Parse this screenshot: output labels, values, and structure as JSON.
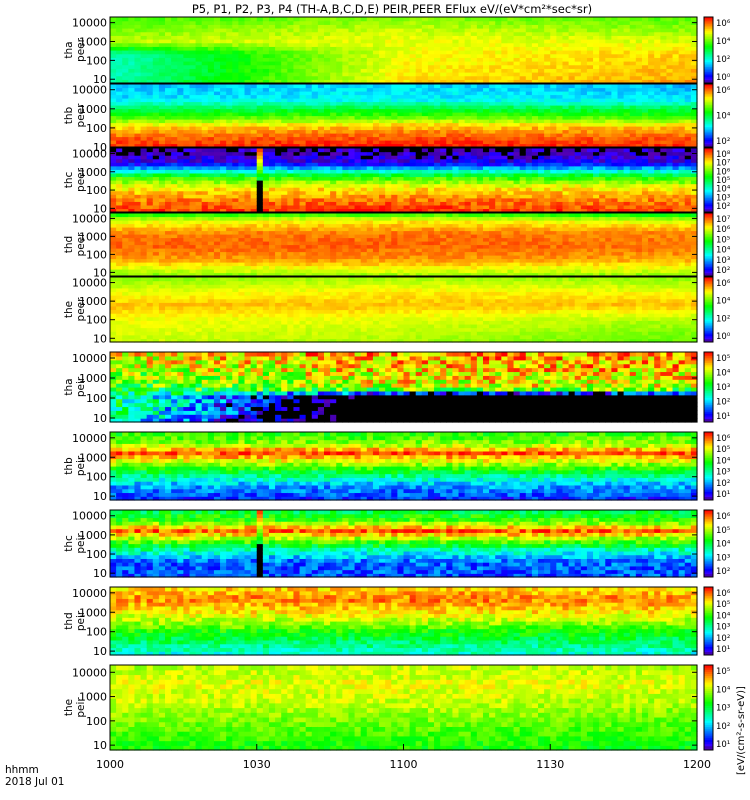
{
  "title": "P5, P1, P2, P3, P4 (TH-A,B,C,D,E) PEIR,PEER EFlux eV/(eV*cm²*sec*sr)",
  "x_axis": {
    "label_line1": "hhmm",
    "label_line2": "2018 Jul 01",
    "ticks": [
      "1000",
      "1030",
      "1100",
      "1130",
      "1200"
    ],
    "tick_minutes": [
      0,
      30,
      60,
      90,
      120
    ]
  },
  "colorbar_label": "[eV/(cm²-s-sr-eV)]",
  "colors": {
    "background": "#ffffff",
    "axes": "#000000",
    "fill": "#000000"
  },
  "chart_data": [
    {
      "type": "heatmap",
      "ylabel": [
        "tha",
        "peer"
      ],
      "yticks": [
        "10000",
        "1000",
        "100",
        "10"
      ],
      "cbar_ticks": [
        "10⁶",
        "10⁴",
        "10²",
        "10⁰"
      ],
      "cbar_range": [
        0,
        6
      ],
      "xlim": [
        0,
        120
      ],
      "ylim_exp": [
        0.8,
        4.3
      ],
      "bands": [
        {
          "e": 4.3,
          "a": 3.6,
          "b": 4.0,
          "c": 3.7
        },
        {
          "e": 3.6,
          "a": 4.0,
          "b": 4.4,
          "c": 4.1
        },
        {
          "e": 3.0,
          "a": 4.3,
          "b": 4.6,
          "c": 4.5
        },
        {
          "e": 2.4,
          "a": 2.4,
          "b": 4.6,
          "c": 4.9
        },
        {
          "e": 1.6,
          "a": 2.3,
          "b": 4.7,
          "c": 5.0
        },
        {
          "e": 0.8,
          "a": 2.4,
          "b": 4.8,
          "c": 5.2
        }
      ],
      "noise": 0.2,
      "gap": null
    },
    {
      "type": "heatmap",
      "ylabel": [
        "thb",
        "peer"
      ],
      "yticks": [
        "10000",
        "1000",
        "100",
        "10"
      ],
      "cbar_ticks": [
        "10⁶",
        "10⁴",
        "10²"
      ],
      "cbar_range": [
        1,
        7
      ],
      "xlim": [
        0,
        120
      ],
      "ylim_exp": [
        1.0,
        4.3
      ],
      "bands": [
        {
          "e": 4.3,
          "a": 2.6,
          "b": 2.8,
          "c": 2.6
        },
        {
          "e": 3.5,
          "a": 2.9,
          "b": 3.0,
          "c": 2.9
        },
        {
          "e": 3.1,
          "a": 3.8,
          "b": 3.9,
          "c": 3.8
        },
        {
          "e": 2.6,
          "a": 4.6,
          "b": 4.8,
          "c": 4.6
        },
        {
          "e": 2.1,
          "a": 5.8,
          "b": 6.0,
          "c": 5.9
        },
        {
          "e": 1.5,
          "a": 6.5,
          "b": 6.6,
          "c": 6.5
        },
        {
          "e": 1.0,
          "a": 6.8,
          "b": 6.9,
          "c": 6.8
        }
      ],
      "noise": 0.25,
      "gap": null
    },
    {
      "type": "heatmap",
      "ylabel": [
        "thc",
        "peer"
      ],
      "yticks": [
        "10000",
        "1000",
        "100",
        "10"
      ],
      "cbar_ticks": [
        "10⁸",
        "10⁷",
        "10⁶",
        "10⁵",
        "10⁴",
        "10³",
        "10²"
      ],
      "cbar_range": [
        2,
        8
      ],
      "xlim": [
        0,
        120
      ],
      "ylim_exp": [
        0.8,
        4.3
      ],
      "bands": [
        {
          "e": 4.3,
          "a": 2.0,
          "b": 2.0,
          "c": 2.0
        },
        {
          "e": 3.5,
          "a": 2.4,
          "b": 2.5,
          "c": 2.5
        },
        {
          "e": 3.1,
          "a": 4.0,
          "b": 4.1,
          "c": 4.0
        },
        {
          "e": 2.7,
          "a": 5.6,
          "b": 5.6,
          "c": 5.5
        },
        {
          "e": 2.2,
          "a": 6.6,
          "b": 6.7,
          "c": 6.6
        },
        {
          "e": 1.5,
          "a": 7.3,
          "b": 7.4,
          "c": 7.3
        },
        {
          "e": 0.8,
          "a": 7.7,
          "b": 7.8,
          "c": 7.7
        }
      ],
      "noise": 0.35,
      "gap": {
        "x0": 29.5,
        "x1": 31.5
      }
    },
    {
      "type": "heatmap",
      "ylabel": [
        "thd",
        "peer"
      ],
      "yticks": [
        "10000",
        "1000",
        "100",
        "10"
      ],
      "cbar_ticks": [
        "10⁷",
        "10⁶",
        "10⁵",
        "10⁴",
        "10³",
        "10²"
      ],
      "cbar_range": [
        1.5,
        7.5
      ],
      "xlim": [
        0,
        120
      ],
      "ylim_exp": [
        0.8,
        4.3
      ],
      "bands": [
        {
          "e": 4.3,
          "a": 4.6,
          "b": 5.0,
          "c": 4.4
        },
        {
          "e": 3.9,
          "a": 6.0,
          "b": 6.2,
          "c": 6.0
        },
        {
          "e": 3.2,
          "a": 6.8,
          "b": 6.9,
          "c": 6.8
        },
        {
          "e": 2.5,
          "a": 7.0,
          "b": 7.0,
          "c": 6.9
        },
        {
          "e": 1.7,
          "a": 6.6,
          "b": 6.7,
          "c": 6.6
        },
        {
          "e": 0.8,
          "a": 5.4,
          "b": 5.6,
          "c": 5.5
        }
      ],
      "noise": 0.2,
      "gap": null
    },
    {
      "type": "heatmap",
      "ylabel": [
        "the",
        "peer"
      ],
      "yticks": [
        "10000",
        "1000",
        "100",
        "10"
      ],
      "cbar_ticks": [
        "10⁶",
        "10⁴",
        "10²",
        "10⁰"
      ],
      "cbar_range": [
        0,
        6
      ],
      "xlim": [
        0,
        120
      ],
      "ylim_exp": [
        0.8,
        4.3
      ],
      "bands": [
        {
          "e": 4.3,
          "a": 4.0,
          "b": 4.2,
          "c": 4.0
        },
        {
          "e": 3.4,
          "a": 4.6,
          "b": 4.8,
          "c": 4.7
        },
        {
          "e": 2.8,
          "a": 5.0,
          "b": 5.0,
          "c": 5.0
        },
        {
          "e": 2.0,
          "a": 4.6,
          "b": 4.5,
          "c": 4.2
        },
        {
          "e": 0.8,
          "a": 4.4,
          "b": 4.2,
          "c": 3.8
        }
      ],
      "noise": 0.15,
      "gap": null
    },
    {
      "type": "heatmap",
      "ylabel": [
        "tha",
        "peir"
      ],
      "yticks": [
        "10000",
        "1000",
        "100",
        "10"
      ],
      "cbar_ticks": [
        "10⁵",
        "10⁴",
        "10³",
        "10²",
        "10¹"
      ],
      "cbar_range": [
        0.5,
        5.5
      ],
      "xlim": [
        0,
        120
      ],
      "ylim_exp": [
        0.8,
        4.3
      ],
      "bands": [
        {
          "e": 4.3,
          "a": 4.4,
          "b": 4.9,
          "c": 4.8
        },
        {
          "e": 3.6,
          "a": 4.0,
          "b": 4.6,
          "c": 4.6
        },
        {
          "e": 3.0,
          "a": 3.6,
          "b": 4.4,
          "c": 4.4
        },
        {
          "e": 2.5,
          "a": 3.2,
          "b": 4.2,
          "c": 4.2
        },
        {
          "e": 2.1,
          "a": 3.0,
          "b": -1.0,
          "c": -1.0
        },
        {
          "e": 0.8,
          "a": 2.6,
          "b": -1.0,
          "c": -1.0
        }
      ],
      "noise": 0.9,
      "gap": null
    },
    {
      "type": "heatmap",
      "ylabel": [
        "thb",
        "peir"
      ],
      "yticks": [
        "10000",
        "1000",
        "100",
        "10"
      ],
      "cbar_ticks": [
        "10⁶",
        "10⁵",
        "10⁴",
        "10³",
        "10²",
        "10¹"
      ],
      "cbar_range": [
        0.5,
        6.5
      ],
      "xlim": [
        0,
        120
      ],
      "ylim_exp": [
        0.8,
        4.3
      ],
      "bands": [
        {
          "e": 4.3,
          "a": 3.9,
          "b": 3.9,
          "c": 3.9
        },
        {
          "e": 3.7,
          "a": 4.6,
          "b": 4.6,
          "c": 4.6
        },
        {
          "e": 3.25,
          "a": 6.1,
          "b": 6.2,
          "c": 6.1
        },
        {
          "e": 2.8,
          "a": 4.9,
          "b": 5.0,
          "c": 4.9
        },
        {
          "e": 2.2,
          "a": 3.4,
          "b": 3.4,
          "c": 3.4
        },
        {
          "e": 1.6,
          "a": 2.1,
          "b": 2.1,
          "c": 2.1
        },
        {
          "e": 0.8,
          "a": 1.3,
          "b": 1.3,
          "c": 1.3
        }
      ],
      "noise": 0.5,
      "gap": null
    },
    {
      "type": "heatmap",
      "ylabel": [
        "thc",
        "peir"
      ],
      "yticks": [
        "10000",
        "1000",
        "100",
        "10"
      ],
      "cbar_ticks": [
        "10⁶",
        "10⁵",
        "10⁴",
        "10³",
        "10²"
      ],
      "cbar_range": [
        1.5,
        6.5
      ],
      "xlim": [
        0,
        120
      ],
      "ylim_exp": [
        0.8,
        4.3
      ],
      "bands": [
        {
          "e": 4.3,
          "a": 3.9,
          "b": 3.9,
          "c": 3.9
        },
        {
          "e": 3.7,
          "a": 4.6,
          "b": 4.7,
          "c": 4.6
        },
        {
          "e": 3.25,
          "a": 6.1,
          "b": 6.2,
          "c": 6.1
        },
        {
          "e": 2.8,
          "a": 4.9,
          "b": 4.9,
          "c": 4.9
        },
        {
          "e": 2.2,
          "a": 3.5,
          "b": 3.4,
          "c": 3.4
        },
        {
          "e": 1.6,
          "a": 2.5,
          "b": 2.5,
          "c": 2.5
        },
        {
          "e": 0.8,
          "a": 2.3,
          "b": 2.4,
          "c": 2.4
        }
      ],
      "noise": 0.45,
      "gap": {
        "x0": 29.5,
        "x1": 31.5
      }
    },
    {
      "type": "heatmap",
      "ylabel": [
        "thd",
        "peir"
      ],
      "yticks": [
        "10000",
        "1000",
        "100",
        "10"
      ],
      "cbar_ticks": [
        "10⁶",
        "10⁵",
        "10⁴",
        "10³",
        "10²",
        "10¹"
      ],
      "cbar_range": [
        0.5,
        6.5
      ],
      "xlim": [
        0,
        120
      ],
      "ylim_exp": [
        0.8,
        4.3
      ],
      "bands": [
        {
          "e": 4.3,
          "a": 5.2,
          "b": 5.4,
          "c": 5.2
        },
        {
          "e": 3.7,
          "a": 5.8,
          "b": 5.9,
          "c": 5.8
        },
        {
          "e": 3.1,
          "a": 5.2,
          "b": 5.4,
          "c": 5.3
        },
        {
          "e": 2.5,
          "a": 4.6,
          "b": 4.7,
          "c": 4.6
        },
        {
          "e": 2.0,
          "a": 3.9,
          "b": 3.9,
          "c": 3.8
        },
        {
          "e": 1.5,
          "a": 3.3,
          "b": 3.3,
          "c": 3.3
        },
        {
          "e": 0.8,
          "a": 2.6,
          "b": 2.7,
          "c": 2.6
        }
      ],
      "noise": 0.45,
      "gap": null
    },
    {
      "type": "heatmap",
      "ylabel": [
        "the",
        "peir"
      ],
      "yticks": [
        "10000",
        "1000",
        "100",
        "10"
      ],
      "cbar_ticks": [
        "10⁵",
        "10⁴",
        "10³",
        "10²",
        "10¹"
      ],
      "cbar_range": [
        0.5,
        5.5
      ],
      "xlim": [
        0,
        120
      ],
      "ylim_exp": [
        0.8,
        4.3
      ],
      "bands": [
        {
          "e": 4.3,
          "a": 4.0,
          "b": 4.1,
          "c": 4.0
        },
        {
          "e": 3.5,
          "a": 4.3,
          "b": 4.3,
          "c": 4.3
        },
        {
          "e": 2.7,
          "a": 4.1,
          "b": 4.1,
          "c": 4.0
        },
        {
          "e": 1.8,
          "a": 3.7,
          "b": 3.7,
          "c": 3.6
        },
        {
          "e": 0.8,
          "a": 3.3,
          "b": 3.3,
          "c": 3.2
        }
      ],
      "noise": 0.3,
      "gap": null
    }
  ]
}
